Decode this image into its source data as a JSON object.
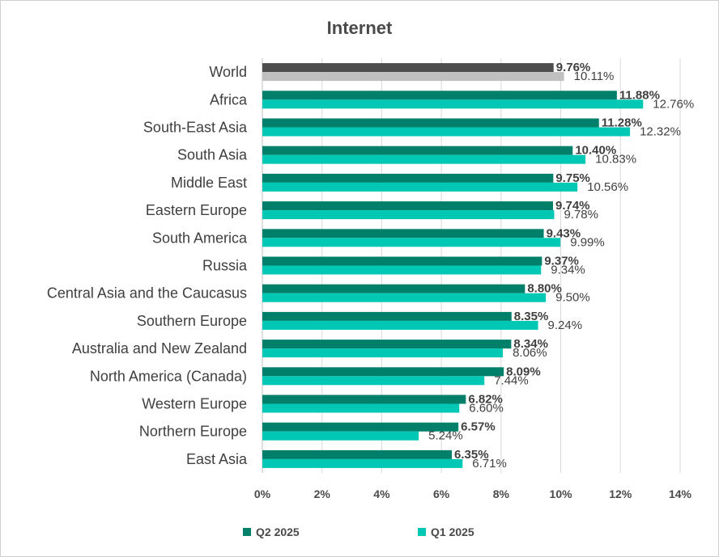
{
  "chart_data": {
    "type": "bar",
    "orientation": "horizontal",
    "title": "Internet",
    "categories": [
      "World",
      "Africa",
      "South-East Asia",
      "South Asia",
      "Middle East",
      "Eastern Europe",
      "South America",
      "Russia",
      "Central Asia and the Caucasus",
      "Southern Europe",
      "Australia and New Zealand",
      "North America (Canada)",
      "Western Europe",
      "Northern Europe",
      "East Asia"
    ],
    "series": [
      {
        "name": "Q2 2025",
        "values": [
          9.76,
          11.88,
          11.28,
          10.4,
          9.75,
          9.74,
          9.43,
          9.37,
          8.8,
          8.35,
          8.34,
          8.09,
          6.82,
          6.57,
          6.35
        ],
        "labels": [
          "9.76%",
          "11.88%",
          "11.28%",
          "10.40%",
          "9.75%",
          "9.74%",
          "9.43%",
          "9.37%",
          "8.80%",
          "8.35%",
          "8.34%",
          "8.09%",
          "6.82%",
          "6.57%",
          "6.35%"
        ],
        "color": "#00806a",
        "world_color": "#4d4d4d"
      },
      {
        "name": "Q1 2025",
        "values": [
          10.11,
          12.76,
          12.32,
          10.83,
          10.56,
          9.78,
          9.99,
          9.34,
          9.5,
          9.24,
          8.06,
          7.44,
          6.6,
          5.24,
          6.71
        ],
        "labels": [
          "10.11%",
          "12.76%",
          "12.32%",
          "10.83%",
          "10.56%",
          "9.78%",
          "9.99%",
          "9.34%",
          "9.50%",
          "9.24%",
          "8.06%",
          "7.44%",
          "6.60%",
          "5.24%",
          "6.71%"
        ],
        "color": "#00c8b4",
        "world_color": "#c0c0c0"
      }
    ],
    "xlim": [
      0,
      14
    ],
    "xticks": [
      "0%",
      "2%",
      "4%",
      "6%",
      "8%",
      "10%",
      "12%",
      "14%"
    ],
    "grid": true,
    "legend_position": "bottom"
  }
}
